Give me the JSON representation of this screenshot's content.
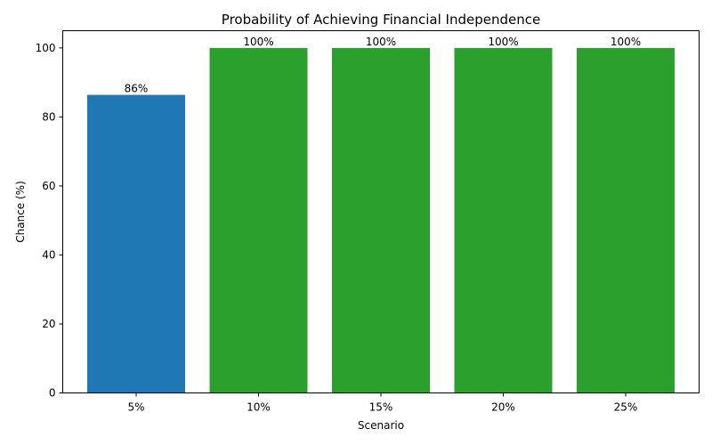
{
  "chart_data": {
    "type": "bar",
    "title": "Probability of Achieving Financial Independence",
    "xlabel": "Scenario",
    "ylabel": "Chance (%)",
    "categories": [
      "5%",
      "10%",
      "15%",
      "20%",
      "25%"
    ],
    "values": [
      86.4,
      100,
      100,
      100,
      100
    ],
    "data_labels": [
      "86%",
      "100%",
      "100%",
      "100%",
      "100%"
    ],
    "bar_colors": [
      "#1f77b4",
      "#2ca02c",
      "#2ca02c",
      "#2ca02c",
      "#2ca02c"
    ],
    "ylim": [
      0,
      105
    ],
    "yticks": [
      0,
      20,
      40,
      60,
      80,
      100
    ],
    "grid": false,
    "legend": "none"
  }
}
